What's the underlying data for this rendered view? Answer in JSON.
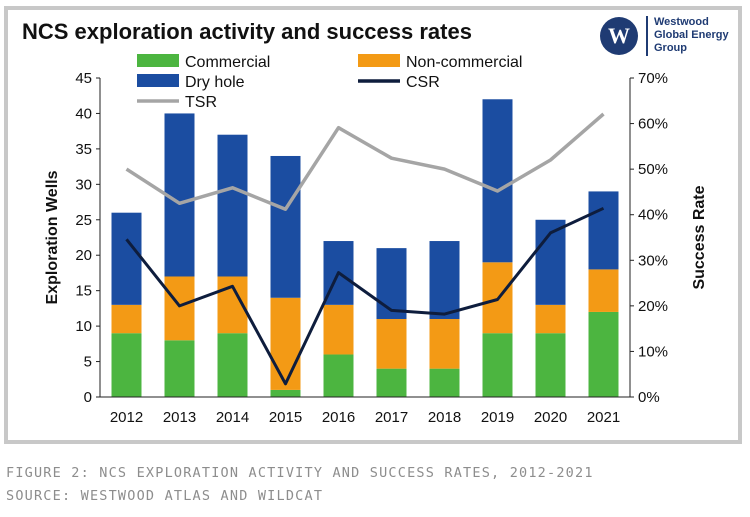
{
  "logo": {
    "mark": "W",
    "lines": [
      "Westwood",
      "Global Energy",
      "Group"
    ]
  },
  "caption": {
    "line1": "FIGURE 2: NCS EXPLORATION ACTIVITY AND SUCCESS RATES, 2012-2021",
    "line2": "SOURCE: WESTWOOD ATLAS AND WILDCAT"
  },
  "colors": {
    "commercial": "#4cb540",
    "noncommercial": "#f39a15",
    "dryhole": "#1b4da1",
    "csr": "#0e1d3d",
    "tsr": "#a5a5a5"
  },
  "chart_data": {
    "type": "bar",
    "title": "NCS exploration activity and success rates",
    "categories": [
      "2012",
      "2013",
      "2014",
      "2015",
      "2016",
      "2017",
      "2018",
      "2019",
      "2020",
      "2021"
    ],
    "series": [
      {
        "name": "Commercial",
        "values": [
          9,
          8,
          9,
          1,
          6,
          4,
          4,
          9,
          9,
          12
        ]
      },
      {
        "name": "Non-commercial",
        "values": [
          4,
          9,
          8,
          13,
          7,
          7,
          7,
          10,
          4,
          6
        ]
      },
      {
        "name": "Dry hole",
        "values": [
          13,
          23,
          20,
          20,
          9,
          10,
          11,
          23,
          12,
          11
        ]
      }
    ],
    "line_series": [
      {
        "name": "CSR",
        "values": [
          34.6,
          20.0,
          24.3,
          2.9,
          27.3,
          19.0,
          18.2,
          21.4,
          36.0,
          41.4
        ]
      },
      {
        "name": "TSR",
        "values": [
          50.0,
          42.5,
          45.9,
          41.2,
          59.1,
          52.4,
          50.0,
          45.2,
          52.0,
          62.1
        ]
      }
    ],
    "legend": [
      "Commercial",
      "Non-commercial",
      "Dry hole",
      "CSR",
      "TSR"
    ],
    "ylabel": "Exploration Wells",
    "y2label": "Success Rate",
    "ylim": [
      0,
      45
    ],
    "y2lim": [
      0,
      70
    ],
    "yticks": [
      "0",
      "5",
      "10",
      "15",
      "20",
      "25",
      "30",
      "35",
      "40",
      "45"
    ],
    "y2ticks": [
      "0%",
      "10%",
      "20%",
      "30%",
      "40%",
      "50%",
      "60%",
      "70%"
    ],
    "grid": false
  }
}
